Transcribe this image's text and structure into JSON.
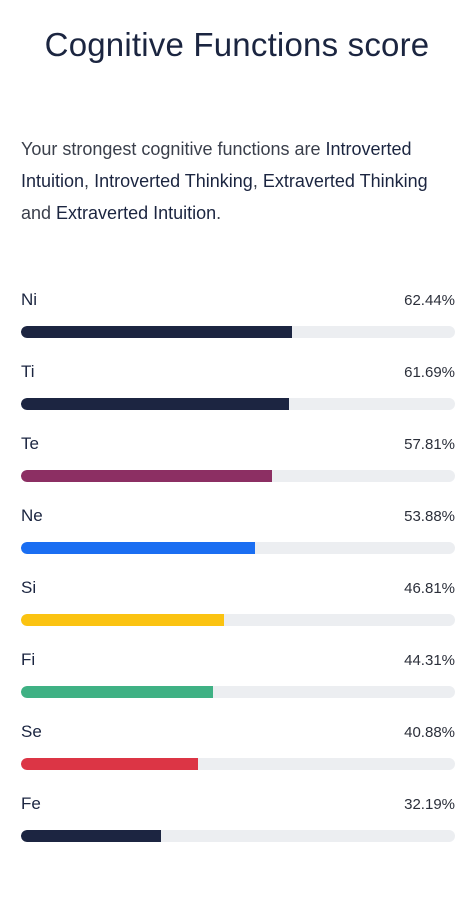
{
  "title": "Cognitive Functions score",
  "summary": {
    "intro": "Your strongest cognitive functions are ",
    "f1": "Introverted Intuition",
    "sep1": ", ",
    "f2": "Introverted Thinking",
    "sep2": ",",
    "f3": "Extraverted Thinking",
    "and": " and ",
    "f4": "Extraverted Intuition",
    "end": "."
  },
  "functions": [
    {
      "label": "Ni",
      "value_text": "62.44%",
      "value": 62.44,
      "color": "#1c2541"
    },
    {
      "label": "Ti",
      "value_text": "61.69%",
      "value": 61.69,
      "color": "#1c2541"
    },
    {
      "label": "Te",
      "value_text": "57.81%",
      "value": 57.81,
      "color": "#8c2f63"
    },
    {
      "label": "Ne",
      "value_text": "53.88%",
      "value": 53.88,
      "color": "#1a6ef2"
    },
    {
      "label": "Si",
      "value_text": "46.81%",
      "value": 46.81,
      "color": "#fbc311"
    },
    {
      "label": "Fi",
      "value_text": "44.31%",
      "value": 44.31,
      "color": "#3fb184"
    },
    {
      "label": "Se",
      "value_text": "40.88%",
      "value": 40.88,
      "color": "#dc3545"
    },
    {
      "label": "Fe",
      "value_text": "32.19%",
      "value": 32.19,
      "color": "#1c2541"
    }
  ]
}
